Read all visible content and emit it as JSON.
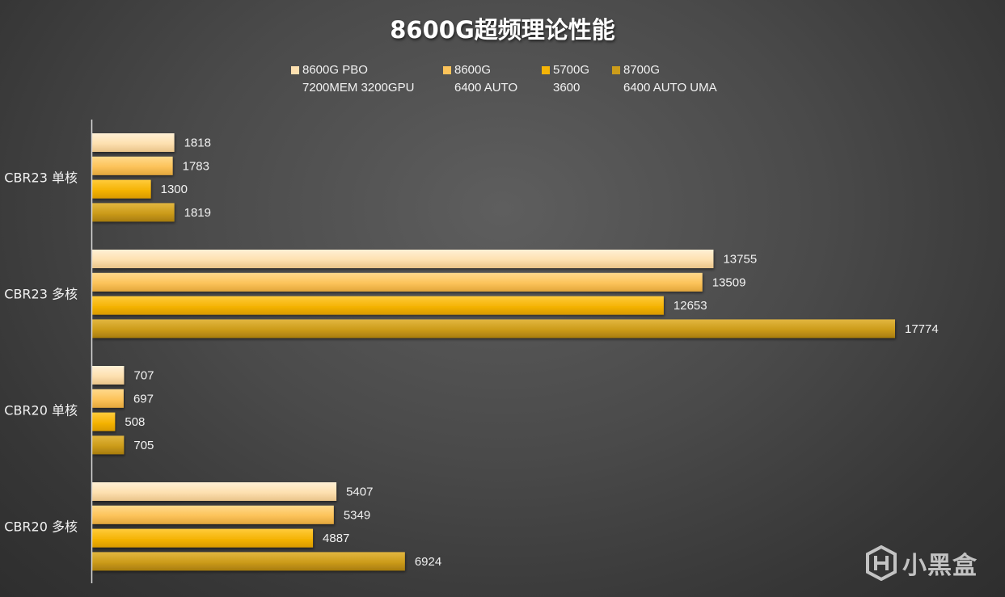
{
  "chart_data": {
    "type": "bar",
    "orientation": "horizontal",
    "title": "8600G超频理论性能",
    "categories": [
      "CBR23 单核",
      "CBR23 多核",
      "CBR20 单核",
      "CBR20 多核"
    ],
    "series": [
      {
        "name_line1": "8600G PBO",
        "name_line2": "7200MEM 3200GPU",
        "color": "#fde0b0",
        "values": [
          1818,
          13755,
          707,
          5407
        ]
      },
      {
        "name_line1": "8600G",
        "name_line2": "6400 AUTO",
        "color": "#fcc35a",
        "values": [
          1783,
          13509,
          697,
          5349
        ]
      },
      {
        "name_line1": "5700G",
        "name_line2": "3600",
        "color": "#f5b406",
        "values": [
          1300,
          12653,
          508,
          4887
        ]
      },
      {
        "name_line1": "8700G",
        "name_line2": "6400 AUTO UMA",
        "color": "#cc9c1a",
        "values": [
          1819,
          17774,
          705,
          6924
        ]
      }
    ],
    "xlim": [
      0,
      18000
    ],
    "grid": false,
    "legend_position": "top"
  },
  "watermark": {
    "icon": "heybox-logo-icon",
    "text": "小黑盒"
  }
}
